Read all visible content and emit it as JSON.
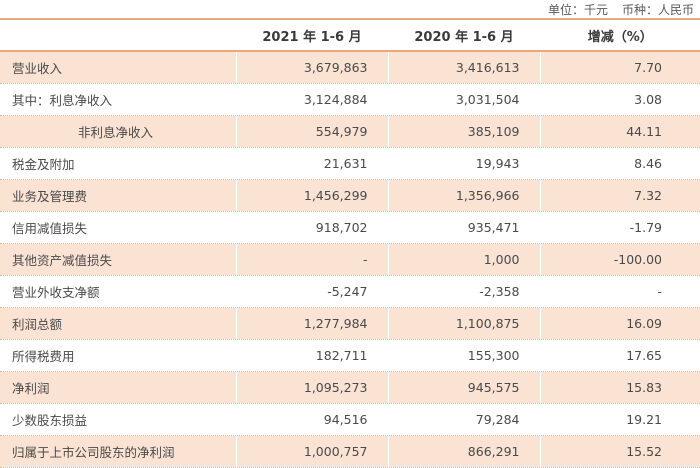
{
  "unit": {
    "unit_text": "单位：千元",
    "currency_text": "币种：人民币"
  },
  "headers": [
    "",
    "2021 年 1-6 月",
    "2020 年 1-6 月",
    "增减（%）"
  ],
  "rows": [
    {
      "label": "营业收入",
      "y2021": "3,679,863",
      "y2020": "3,416,613",
      "change": "7.70"
    },
    {
      "label": "其中：利息净收入",
      "y2021": "3,124,884",
      "y2020": "3,031,504",
      "change": "3.08"
    },
    {
      "label": "非利息净收入",
      "y2021": "554,979",
      "y2020": "385,109",
      "change": "44.11"
    },
    {
      "label": "税金及附加",
      "y2021": "21,631",
      "y2020": "19,943",
      "change": "8.46"
    },
    {
      "label": "业务及管理费",
      "y2021": "1,456,299",
      "y2020": "1,356,966",
      "change": "7.32"
    },
    {
      "label": "信用减值损失",
      "y2021": "918,702",
      "y2020": "935,471",
      "change": "-1.79"
    },
    {
      "label": "其他资产减值损失",
      "y2021": "-",
      "y2020": "1,000",
      "change": "-100.00"
    },
    {
      "label": "营业外收支净额",
      "y2021": "-5,247",
      "y2020": "-2,358",
      "change": "-"
    },
    {
      "label": "利润总额",
      "y2021": "1,277,984",
      "y2020": "1,100,875",
      "change": "16.09"
    },
    {
      "label": "所得税费用",
      "y2021": "182,711",
      "y2020": "155,300",
      "change": "17.65"
    },
    {
      "label": "净利润",
      "y2021": "1,095,273",
      "y2020": "945,575",
      "change": "15.83"
    },
    {
      "label": "少数股东损益",
      "y2021": "94,516",
      "y2020": "79,284",
      "change": "19.21"
    },
    {
      "label": "归属于上市公司股东的净利润",
      "y2021": "1,000,757",
      "y2020": "866,291",
      "change": "15.52"
    }
  ],
  "colors": {
    "shade": "#fbe3d4",
    "rule": "#e8a77e"
  }
}
